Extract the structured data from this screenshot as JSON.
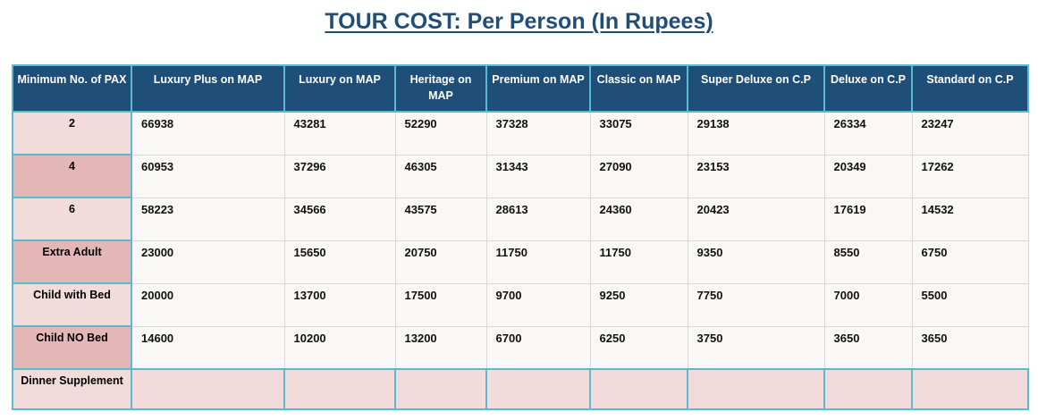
{
  "title": "TOUR COST: Per Person (In Rupees)",
  "colors": {
    "title_color": "#1F4E79",
    "header_bg": "#1F4E79",
    "header_text": "#FFFFFF",
    "border_cyan": "#5BB9D1",
    "grid_gray": "#D9D9D9",
    "pink_light": "#F2DCDB",
    "pink_dark": "#E3B7B5",
    "data_bg": "#F9F8F7"
  },
  "table": {
    "columns": [
      "Minimum No. of PAX",
      "Luxury Plus on MAP",
      "Luxury on MAP",
      "Heritage on MAP",
      "Premium on MAP",
      "Classic on MAP",
      "Super Deluxe on C.P",
      "Deluxe on C.P",
      "Standard on C.P"
    ],
    "rows": [
      {
        "label": "2",
        "shade": "light",
        "highlight": false,
        "values": [
          "66938",
          "43281",
          "52290",
          "37328",
          "33075",
          "29138",
          "26334",
          "23247"
        ]
      },
      {
        "label": "4",
        "shade": "dark",
        "highlight": false,
        "values": [
          "60953",
          "37296",
          "46305",
          "31343",
          "27090",
          "23153",
          "20349",
          "17262"
        ]
      },
      {
        "label": "6",
        "shade": "light",
        "highlight": false,
        "values": [
          "58223",
          "34566",
          "43575",
          "28613",
          "24360",
          "20423",
          "17619",
          "14532"
        ]
      },
      {
        "label": "Extra Adult",
        "shade": "dark",
        "highlight": false,
        "values": [
          "23000",
          "15650",
          "20750",
          "11750",
          "11750",
          "9350",
          "8550",
          "6750"
        ]
      },
      {
        "label": "Child with Bed",
        "shade": "light",
        "highlight": false,
        "values": [
          "20000",
          "13700",
          "17500",
          "9700",
          "9250",
          "7750",
          "7000",
          "5500"
        ]
      },
      {
        "label": "Child NO Bed",
        "shade": "dark",
        "highlight": false,
        "values": [
          "14600",
          "10200",
          "13200",
          "6700",
          "6250",
          "3750",
          "3650",
          "3650"
        ]
      },
      {
        "label": "Dinner Supplement",
        "shade": "light",
        "highlight": true,
        "values": [
          "",
          "",
          "",
          "",
          "",
          "",
          "",
          ""
        ]
      }
    ]
  }
}
